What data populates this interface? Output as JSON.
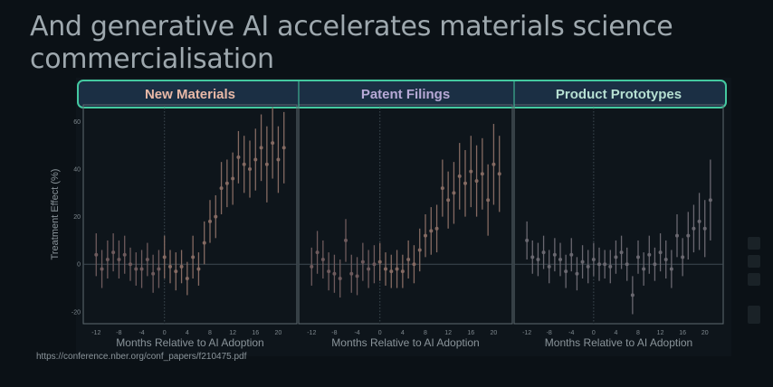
{
  "slide": {
    "title": "And generative AI accelerates materials science commercialisation",
    "source": "https://conference.nber.org/conf_papers/f210475.pdf"
  },
  "colors": {
    "background": "#0b1116",
    "panel": "#0e151b",
    "header_border": "#44c9a0",
    "header_fill": "#1b2f44",
    "panel_border": "#5f6a70",
    "grid_zero": "#3e4a52",
    "series_pre": "#6e5a5c",
    "series_post": "#856a62",
    "series_prototypes": "#6a6870"
  },
  "chart_data": [
    {
      "type": "scatter",
      "title": "New Materials",
      "title_color": "#e9b9a7",
      "xlabel": "Months Relative to AI Adoption",
      "ylabel": "Treatment Effect (%)",
      "xlim": [
        -13,
        22
      ],
      "ylim": [
        -25,
        67
      ],
      "xticks": [
        -12,
        -8,
        -4,
        0,
        4,
        8,
        12,
        16,
        20
      ],
      "yticks": [
        -20,
        0,
        20,
        40,
        60
      ],
      "reference_lines": {
        "x": 0,
        "y": 0
      },
      "x": [
        -12,
        -11,
        -10,
        -9,
        -8,
        -7,
        -6,
        -5,
        -4,
        -3,
        -2,
        -1,
        0,
        1,
        2,
        3,
        4,
        5,
        6,
        7,
        8,
        9,
        10,
        11,
        12,
        13,
        14,
        15,
        16,
        17,
        18,
        19,
        20,
        21
      ],
      "y": [
        4,
        -2,
        2,
        5,
        2,
        4,
        0,
        -2,
        -2,
        2,
        -4,
        -2,
        3,
        -1,
        -3,
        -1,
        -6,
        3,
        -2,
        9,
        18,
        20,
        32,
        34,
        36,
        45,
        42,
        40,
        44,
        49,
        42,
        51,
        44,
        49
      ],
      "err": [
        9,
        8,
        8,
        8,
        8,
        8,
        7,
        7,
        8,
        7,
        8,
        8,
        9,
        7,
        8,
        7,
        7,
        9,
        7,
        9,
        9,
        9,
        11,
        10,
        11,
        11,
        12,
        12,
        13,
        14,
        16,
        15,
        14,
        15
      ]
    },
    {
      "type": "scatter",
      "title": "Patent Filings",
      "title_color": "#b7a9d6",
      "xlabel": "Months Relative to AI Adoption",
      "ylabel": "",
      "xlim": [
        -13,
        22
      ],
      "ylim": [
        -25,
        67
      ],
      "xticks": [
        -12,
        -8,
        -4,
        0,
        4,
        8,
        12,
        16,
        20
      ],
      "yticks": [],
      "reference_lines": {
        "x": 0,
        "y": 0
      },
      "x": [
        -12,
        -11,
        -10,
        -9,
        -8,
        -7,
        -6,
        -5,
        -4,
        -3,
        -2,
        -1,
        0,
        1,
        2,
        3,
        4,
        5,
        6,
        7,
        8,
        9,
        10,
        11,
        12,
        13,
        14,
        15,
        16,
        17,
        18,
        19,
        20,
        21
      ],
      "y": [
        -1,
        5,
        2,
        -3,
        -4,
        -6,
        10,
        -4,
        -5,
        1,
        -2,
        0,
        1,
        -2,
        -3,
        -2,
        -3,
        2,
        0,
        6,
        12,
        14,
        15,
        32,
        27,
        30,
        37,
        34,
        39,
        35,
        38,
        27,
        42,
        38
      ],
      "err": [
        8,
        9,
        8,
        8,
        8,
        8,
        9,
        8,
        8,
        8,
        8,
        8,
        8,
        7,
        7,
        8,
        7,
        8,
        8,
        9,
        9,
        10,
        10,
        12,
        12,
        13,
        14,
        14,
        15,
        15,
        15,
        15,
        17,
        16
      ]
    },
    {
      "type": "scatter",
      "title": "Product Prototypes",
      "title_color": "#b6dfd2",
      "xlabel": "Months Relative to AI Adoption",
      "ylabel": "",
      "xlim": [
        -13,
        22
      ],
      "ylim": [
        -25,
        67
      ],
      "xticks": [
        -12,
        -8,
        -4,
        0,
        4,
        8,
        12,
        16,
        20
      ],
      "yticks": [],
      "reference_lines": {
        "x": 0,
        "y": 0
      },
      "x": [
        -12,
        -11,
        -10,
        -9,
        -8,
        -7,
        -6,
        -5,
        -4,
        -3,
        -2,
        -1,
        0,
        1,
        2,
        3,
        4,
        5,
        6,
        7,
        8,
        9,
        10,
        11,
        12,
        13,
        14,
        15,
        16,
        17,
        18,
        19,
        20,
        21
      ],
      "y": [
        10,
        3,
        2,
        5,
        -1,
        4,
        2,
        -3,
        4,
        -4,
        1,
        -1,
        2,
        0,
        0,
        -1,
        3,
        5,
        0,
        -13,
        3,
        -2,
        4,
        0,
        5,
        2,
        -2,
        12,
        3,
        12,
        15,
        18,
        15,
        27
      ],
      "err": [
        8,
        7,
        7,
        7,
        7,
        7,
        7,
        7,
        7,
        7,
        7,
        7,
        7,
        7,
        6,
        7,
        7,
        7,
        7,
        8,
        7,
        7,
        8,
        7,
        8,
        8,
        8,
        9,
        8,
        10,
        10,
        12,
        12,
        17
      ]
    }
  ]
}
